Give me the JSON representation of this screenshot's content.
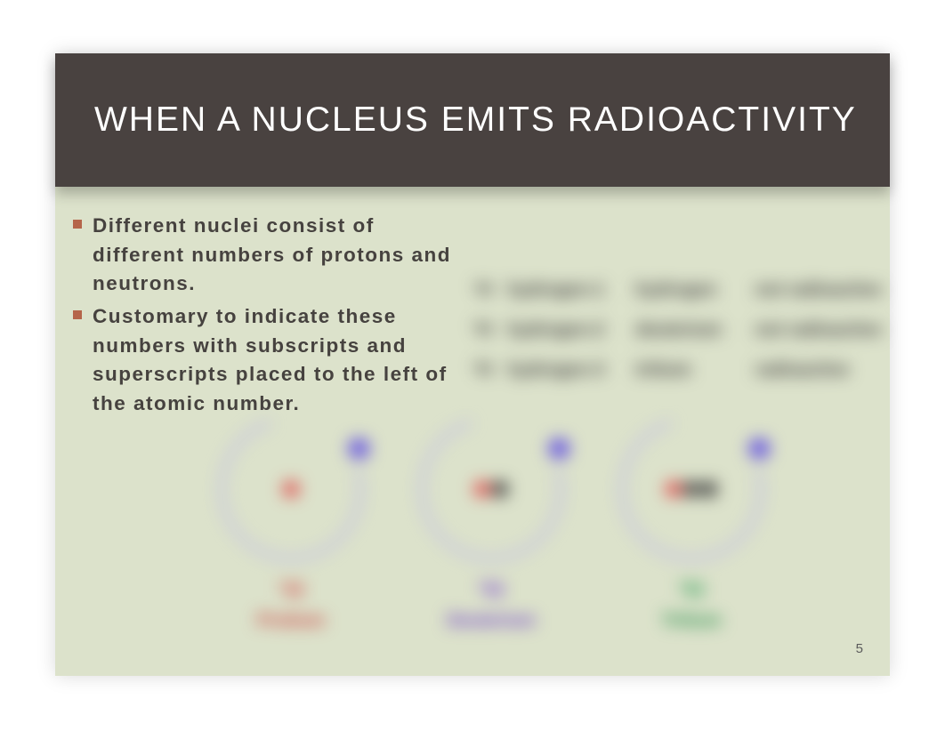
{
  "slide": {
    "title": "WHEN A NUCLEUS EMITS RADIOACTIVITY",
    "title_color": "#ffffff",
    "title_bg": "#494240",
    "title_fontsize": 39,
    "body_bg": "#dce2cb",
    "bullet_marker_color": "#b5654a",
    "bullet_text_color": "#46423f",
    "bullet_fontsize": 22.5,
    "bullets": [
      "Different nuclei consist of different numbers of protons and neutrons.",
      "Customary to indicate these numbers with subscripts and superscripts placed to the left of the atomic number."
    ],
    "page_number": "5"
  },
  "isotope_legend": {
    "rows": [
      {
        "symbol": "¹H",
        "name": "hydrogen-1",
        "alt": "hydrogen",
        "radioactive": "not radioactive"
      },
      {
        "symbol": "²H",
        "name": "hydrogen-2",
        "alt": "deuterium",
        "radioactive": "not radioactive"
      },
      {
        "symbol": "³H",
        "name": "hydrogen-3",
        "alt": "tritium",
        "radioactive": "radioactive"
      }
    ],
    "text_color": "#3a3a3a",
    "fontsize": 20
  },
  "atom_diagram": {
    "orbit_color": "#b9b4ec",
    "electron_color": "#6a5ae0",
    "proton_color": "#e04848",
    "neutron_color": "#3a3a3a",
    "atoms": [
      {
        "protons": 1,
        "neutrons": 0,
        "symbol": "¹H",
        "symbol_color": "#d24a4a",
        "label": "Protium",
        "label_color": "#c93a3a"
      },
      {
        "protons": 1,
        "neutrons": 1,
        "symbol": "²H",
        "symbol_color": "#7a4ad2",
        "label": "Deuterium",
        "label_color": "#6a3ac9"
      },
      {
        "protons": 1,
        "neutrons": 2,
        "symbol": "³H",
        "symbol_color": "#2f9d57",
        "label": "Tritium",
        "label_color": "#1f8a45"
      }
    ]
  }
}
